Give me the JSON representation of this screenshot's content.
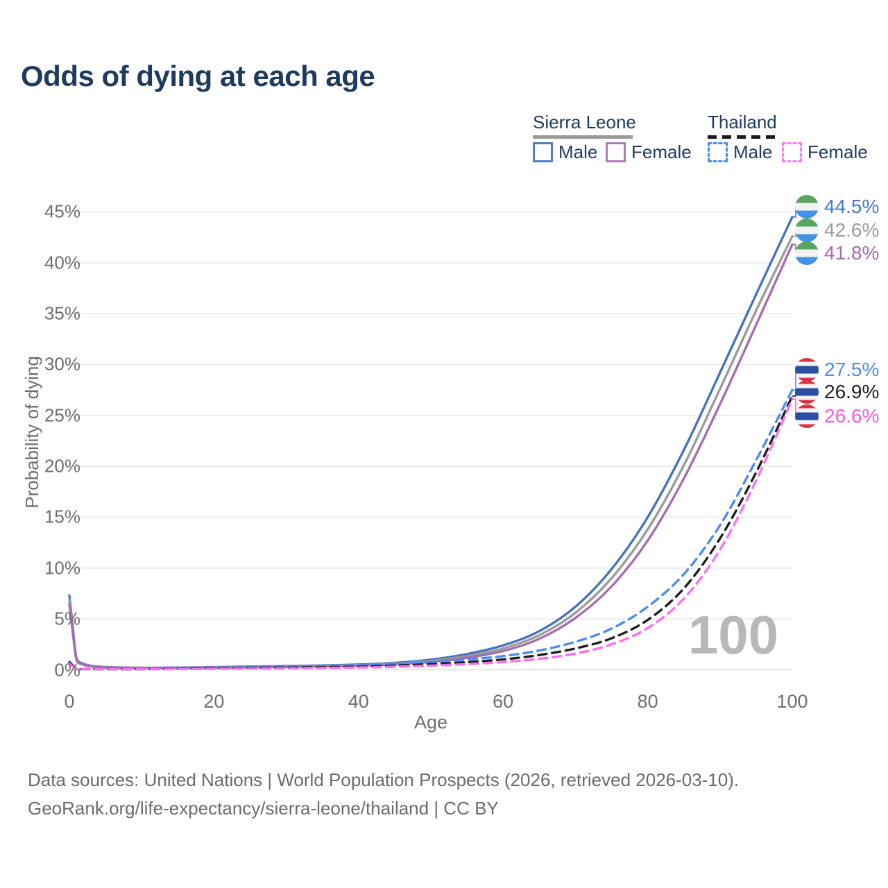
{
  "title": {
    "text": "Odds of dying at each age"
  },
  "legend": {
    "countries": [
      {
        "name": "Sierra Leone",
        "line_style": "solid",
        "rule_color": "#9a9a9a"
      },
      {
        "name": "Thailand",
        "line_style": "dashed",
        "rule_color": "#1a1a1a"
      }
    ],
    "items": [
      {
        "country": "Sierra Leone",
        "label": "Male",
        "swatch_color": "#4f7ec2",
        "swatch_style": "solid"
      },
      {
        "country": "Sierra Leone",
        "label": "Female",
        "swatch_color": "#b07ab8",
        "swatch_style": "solid"
      },
      {
        "country": "Thailand",
        "label": "Male",
        "swatch_color": "#4b8bf5",
        "swatch_style": "dashed"
      },
      {
        "country": "Thailand",
        "label": "Female",
        "swatch_color": "#ff7df2",
        "swatch_style": "dashed"
      }
    ]
  },
  "axes": {
    "x": {
      "title": "Age",
      "ticks": [
        0,
        20,
        40,
        60,
        80,
        100
      ],
      "range": [
        0,
        100
      ]
    },
    "y": {
      "title": "Probability of dying",
      "tick_labels": [
        "0%",
        "5%",
        "10%",
        "15%",
        "20%",
        "25%",
        "30%",
        "35%",
        "40%",
        "45%"
      ],
      "tick_values": [
        0,
        5,
        10,
        15,
        20,
        25,
        30,
        35,
        40,
        45
      ],
      "range": [
        0,
        45
      ]
    }
  },
  "chart_data": {
    "type": "line",
    "title": "Odds of dying at each age",
    "xlabel": "Age",
    "ylabel": "Probability of dying",
    "xlim": [
      0,
      100
    ],
    "ylim_pct": [
      0,
      45
    ],
    "grid": "horizontal",
    "legend_position": "top-right",
    "series": [
      {
        "name": "Sierra Leone — Male",
        "country": "Sierra Leone",
        "sex": "male",
        "color": "#4474bd",
        "dash": false,
        "end_value_pct": 44.5,
        "points": [
          [
            0,
            7.3
          ],
          [
            0.5,
            4.0
          ],
          [
            1,
            1.15
          ],
          [
            2,
            0.6
          ],
          [
            3,
            0.4
          ],
          [
            5,
            0.28
          ],
          [
            10,
            0.2
          ],
          [
            15,
            0.22
          ],
          [
            20,
            0.27
          ],
          [
            25,
            0.32
          ],
          [
            30,
            0.37
          ],
          [
            35,
            0.43
          ],
          [
            40,
            0.52
          ],
          [
            45,
            0.68
          ],
          [
            50,
            1.0
          ],
          [
            55,
            1.55
          ],
          [
            60,
            2.4
          ],
          [
            65,
            3.8
          ],
          [
            70,
            6.2
          ],
          [
            75,
            9.9
          ],
          [
            80,
            15.0
          ],
          [
            85,
            21.6
          ],
          [
            90,
            29.2
          ],
          [
            95,
            36.9
          ],
          [
            100,
            44.5
          ]
        ]
      },
      {
        "name": "Sierra Leone — Both sexes",
        "country": "Sierra Leone",
        "sex": "all",
        "color": "#9b9b9b",
        "dash": false,
        "end_value_pct": 42.6,
        "points": [
          [
            0,
            6.9
          ],
          [
            0.5,
            3.7
          ],
          [
            1,
            1.05
          ],
          [
            2,
            0.55
          ],
          [
            3,
            0.36
          ],
          [
            5,
            0.25
          ],
          [
            10,
            0.18
          ],
          [
            15,
            0.2
          ],
          [
            20,
            0.24
          ],
          [
            25,
            0.28
          ],
          [
            30,
            0.33
          ],
          [
            35,
            0.38
          ],
          [
            40,
            0.46
          ],
          [
            45,
            0.6
          ],
          [
            50,
            0.88
          ],
          [
            55,
            1.35
          ],
          [
            60,
            2.1
          ],
          [
            65,
            3.4
          ],
          [
            70,
            5.6
          ],
          [
            75,
            9.0
          ],
          [
            80,
            13.8
          ],
          [
            85,
            20.1
          ],
          [
            90,
            27.6
          ],
          [
            95,
            35.3
          ],
          [
            100,
            42.6
          ]
        ]
      },
      {
        "name": "Sierra Leone — Female",
        "country": "Sierra Leone",
        "sex": "female",
        "color": "#a76bb2",
        "dash": false,
        "end_value_pct": 41.8,
        "points": [
          [
            0,
            6.5
          ],
          [
            0.5,
            3.5
          ],
          [
            1,
            0.98
          ],
          [
            2,
            0.5
          ],
          [
            3,
            0.33
          ],
          [
            5,
            0.23
          ],
          [
            10,
            0.17
          ],
          [
            15,
            0.18
          ],
          [
            20,
            0.21
          ],
          [
            25,
            0.25
          ],
          [
            30,
            0.29
          ],
          [
            35,
            0.34
          ],
          [
            40,
            0.41
          ],
          [
            45,
            0.53
          ],
          [
            50,
            0.77
          ],
          [
            55,
            1.18
          ],
          [
            60,
            1.85
          ],
          [
            65,
            3.05
          ],
          [
            70,
            5.1
          ],
          [
            75,
            8.2
          ],
          [
            80,
            12.7
          ],
          [
            85,
            18.8
          ],
          [
            90,
            26.1
          ],
          [
            95,
            33.9
          ],
          [
            100,
            41.8
          ]
        ]
      },
      {
        "name": "Thailand — Male",
        "country": "Thailand",
        "sex": "male",
        "color": "#4b8bf5",
        "dash": true,
        "end_value_pct": 27.5,
        "points": [
          [
            0,
            0.8
          ],
          [
            1,
            0.12
          ],
          [
            2,
            0.08
          ],
          [
            5,
            0.06
          ],
          [
            10,
            0.07
          ],
          [
            15,
            0.13
          ],
          [
            20,
            0.2
          ],
          [
            25,
            0.26
          ],
          [
            30,
            0.31
          ],
          [
            35,
            0.37
          ],
          [
            40,
            0.44
          ],
          [
            45,
            0.57
          ],
          [
            50,
            0.77
          ],
          [
            55,
            1.02
          ],
          [
            60,
            1.35
          ],
          [
            65,
            1.9
          ],
          [
            70,
            2.75
          ],
          [
            75,
            4.05
          ],
          [
            80,
            6.2
          ],
          [
            85,
            9.4
          ],
          [
            90,
            14.2
          ],
          [
            95,
            20.6
          ],
          [
            100,
            27.5
          ]
        ]
      },
      {
        "name": "Thailand — Both sexes",
        "country": "Thailand",
        "sex": "all",
        "color": "#1f1f1f",
        "dash": true,
        "end_value_pct": 26.9,
        "points": [
          [
            0,
            0.7
          ],
          [
            1,
            0.1
          ],
          [
            2,
            0.07
          ],
          [
            5,
            0.05
          ],
          [
            10,
            0.06
          ],
          [
            15,
            0.1
          ],
          [
            20,
            0.15
          ],
          [
            25,
            0.18
          ],
          [
            30,
            0.22
          ],
          [
            35,
            0.26
          ],
          [
            40,
            0.31
          ],
          [
            45,
            0.41
          ],
          [
            50,
            0.56
          ],
          [
            55,
            0.76
          ],
          [
            60,
            1.02
          ],
          [
            65,
            1.45
          ],
          [
            70,
            2.1
          ],
          [
            75,
            3.1
          ],
          [
            80,
            4.9
          ],
          [
            85,
            8.0
          ],
          [
            90,
            12.9
          ],
          [
            95,
            19.4
          ],
          [
            100,
            26.9
          ]
        ]
      },
      {
        "name": "Thailand — Female",
        "country": "Thailand",
        "sex": "female",
        "color": "#ff6ef0",
        "dash": true,
        "end_value_pct": 26.6,
        "points": [
          [
            0,
            0.6
          ],
          [
            1,
            0.08
          ],
          [
            2,
            0.05
          ],
          [
            5,
            0.04
          ],
          [
            10,
            0.05
          ],
          [
            15,
            0.07
          ],
          [
            20,
            0.1
          ],
          [
            25,
            0.12
          ],
          [
            30,
            0.15
          ],
          [
            35,
            0.18
          ],
          [
            40,
            0.23
          ],
          [
            45,
            0.3
          ],
          [
            50,
            0.41
          ],
          [
            55,
            0.56
          ],
          [
            60,
            0.76
          ],
          [
            65,
            1.08
          ],
          [
            70,
            1.6
          ],
          [
            75,
            2.5
          ],
          [
            80,
            4.1
          ],
          [
            85,
            7.0
          ],
          [
            90,
            11.8
          ],
          [
            95,
            18.6
          ],
          [
            100,
            26.6
          ]
        ]
      }
    ]
  },
  "annotations": {
    "age_counter": "100",
    "end_labels": [
      {
        "value": "44.5%",
        "flag": "sierra-leone",
        "color": "#4478d0"
      },
      {
        "value": "42.6%",
        "flag": "sierra-leone",
        "color": "#9b9b9b"
      },
      {
        "value": "41.8%",
        "flag": "sierra-leone",
        "color": "#a76bb2"
      },
      {
        "value": "27.5%",
        "flag": "thailand",
        "color": "#4b8bf5"
      },
      {
        "value": "26.9%",
        "flag": "thailand",
        "color": "#1f1f1f"
      },
      {
        "value": "26.6%",
        "flag": "thailand",
        "color": "#ff57e3"
      }
    ]
  },
  "footer": {
    "line1": "Data sources: United Nations | World Population Prospects (2026, retrieved 2026-03-10).",
    "line2": "GeoRank.org/life-expectancy/sierra-leone/thailand | CC BY"
  }
}
